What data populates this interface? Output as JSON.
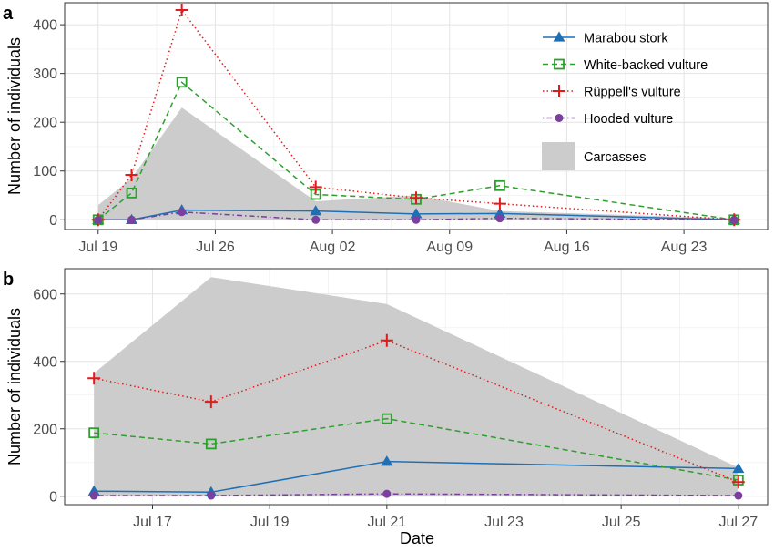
{
  "figure": {
    "xlabel": "Date",
    "colors": {
      "marabou": "#1f6fb4",
      "white_backed": "#2ca02c",
      "ruppell": "#e31a1c",
      "hooded": "#7b3fa0",
      "carcasses": "#cccccc"
    }
  },
  "legend": {
    "items": [
      {
        "key": "marabou",
        "label": "Marabou stork",
        "marker": "triangle",
        "dash": "solid"
      },
      {
        "key": "white_backed",
        "label": "White-backed vulture",
        "marker": "square-open",
        "dash": "dashed"
      },
      {
        "key": "ruppell",
        "label": "Rüppell's vulture",
        "marker": "plus",
        "dash": "dotted"
      },
      {
        "key": "hooded",
        "label": "Hooded vulture",
        "marker": "circle",
        "dash": "dotdash"
      }
    ],
    "area_label": "Carcasses",
    "placement": "top-right of panel a"
  },
  "chart_data": [
    {
      "panel": "a",
      "type": "line",
      "ylabel": "Number of individuals",
      "xlim": [
        "2015-07-17",
        "2015-08-28"
      ],
      "ylim": [
        -20,
        445
      ],
      "x_ticks": [
        "2015-07-19",
        "2015-07-26",
        "2015-08-02",
        "2015-08-09",
        "2015-08-16",
        "2015-08-23"
      ],
      "x_tick_labels": [
        "Jul 19",
        "Jul 26",
        "Aug 02",
        "Aug 09",
        "Aug 16",
        "Aug 23"
      ],
      "y_ticks": [
        0,
        100,
        200,
        300,
        400
      ],
      "y_tick_labels": [
        "0",
        "100",
        "200",
        "300",
        "400"
      ],
      "grid": true,
      "area": {
        "name": "Carcasses",
        "x": [
          "2015-07-19",
          "2015-07-21",
          "2015-07-24",
          "2015-08-01",
          "2015-08-07",
          "2015-08-12",
          "2015-08-26"
        ],
        "values": [
          30,
          85,
          230,
          38,
          50,
          18,
          3
        ]
      },
      "series": [
        {
          "key": "marabou",
          "x": [
            "2015-07-19",
            "2015-07-21",
            "2015-07-24",
            "2015-08-01",
            "2015-08-07",
            "2015-08-12",
            "2015-08-26"
          ],
          "values": [
            0,
            0,
            20,
            18,
            12,
            13,
            0
          ]
        },
        {
          "key": "white_backed",
          "x": [
            "2015-07-19",
            "2015-07-21",
            "2015-07-24",
            "2015-08-01",
            "2015-08-07",
            "2015-08-12",
            "2015-08-26"
          ],
          "values": [
            0,
            55,
            282,
            52,
            42,
            70,
            0
          ]
        },
        {
          "key": "ruppell",
          "x": [
            "2015-07-19",
            "2015-07-21",
            "2015-07-24",
            "2015-08-01",
            "2015-08-07",
            "2015-08-12",
            "2015-08-26"
          ],
          "values": [
            0,
            92,
            430,
            67,
            45,
            33,
            0
          ]
        },
        {
          "key": "hooded",
          "x": [
            "2015-07-19",
            "2015-07-21",
            "2015-07-24",
            "2015-08-01",
            "2015-08-07",
            "2015-08-12",
            "2015-08-26"
          ],
          "values": [
            0,
            0,
            16,
            0,
            0,
            3,
            0
          ]
        }
      ]
    },
    {
      "panel": "b",
      "type": "line",
      "ylabel": "Number of individuals",
      "xlim": [
        "2015-07-15 12:00",
        "2015-07-27 12:00"
      ],
      "ylim": [
        -25,
        675
      ],
      "x_ticks": [
        "2015-07-17",
        "2015-07-19",
        "2015-07-21",
        "2015-07-23",
        "2015-07-25",
        "2015-07-27"
      ],
      "x_tick_labels": [
        "Jul 17",
        "Jul 19",
        "Jul 21",
        "Jul 23",
        "Jul 25",
        "Jul 27"
      ],
      "y_ticks": [
        0,
        200,
        400,
        600
      ],
      "y_tick_labels": [
        "0",
        "200",
        "400",
        "600"
      ],
      "grid": true,
      "area": {
        "name": "Carcasses",
        "x": [
          "2015-07-16",
          "2015-07-18",
          "2015-07-21",
          "2015-07-27"
        ],
        "values": [
          365,
          650,
          570,
          85
        ]
      },
      "series": [
        {
          "key": "marabou",
          "x": [
            "2015-07-16",
            "2015-07-18",
            "2015-07-21",
            "2015-07-27"
          ],
          "values": [
            15,
            12,
            103,
            82
          ]
        },
        {
          "key": "white_backed",
          "x": [
            "2015-07-16",
            "2015-07-18",
            "2015-07-21",
            "2015-07-27"
          ],
          "values": [
            188,
            155,
            230,
            48
          ]
        },
        {
          "key": "ruppell",
          "x": [
            "2015-07-16",
            "2015-07-18",
            "2015-07-21",
            "2015-07-27"
          ],
          "values": [
            350,
            280,
            462,
            42
          ]
        },
        {
          "key": "hooded",
          "x": [
            "2015-07-16",
            "2015-07-18",
            "2015-07-21",
            "2015-07-27"
          ],
          "values": [
            2,
            2,
            7,
            2
          ]
        }
      ]
    }
  ]
}
